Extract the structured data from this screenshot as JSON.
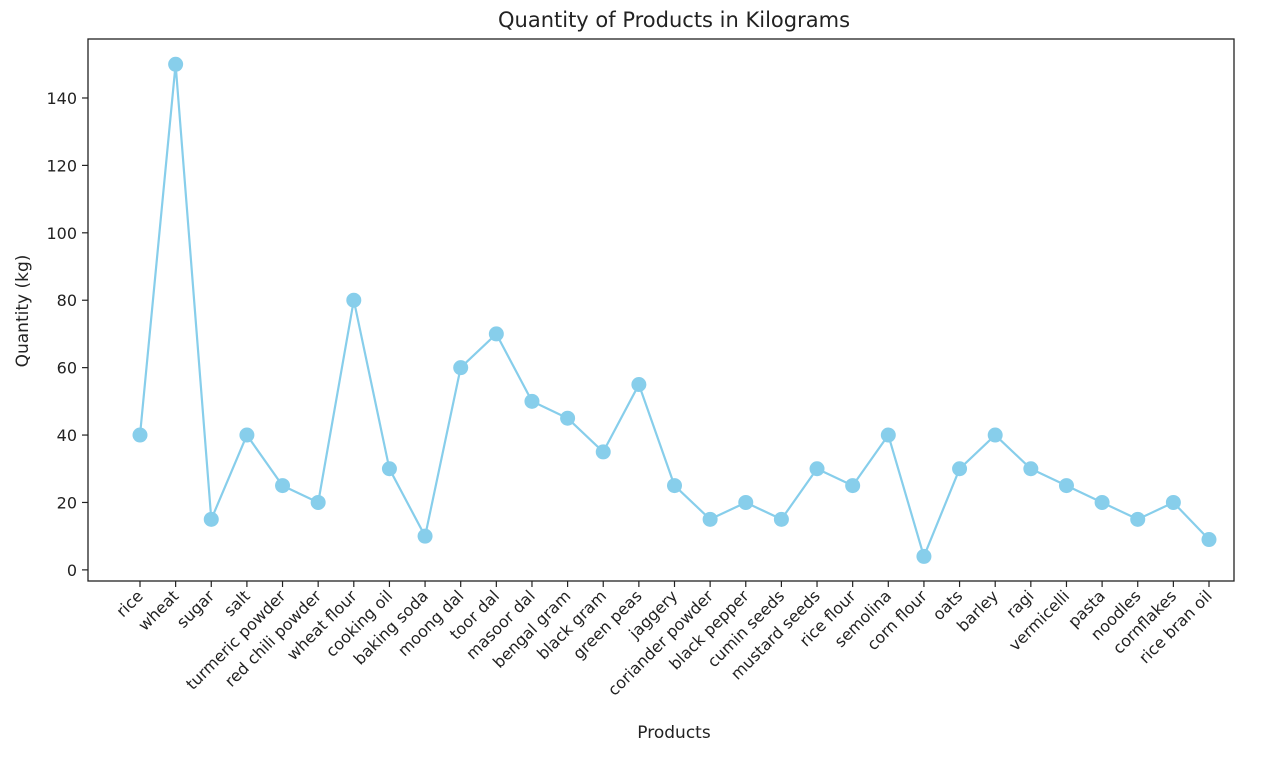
{
  "chart_data": {
    "type": "line",
    "title": "Quantity of Products in Kilograms",
    "xlabel": "Products",
    "ylabel": "Quantity (kg)",
    "ylim": [
      -3.3,
      157.5
    ],
    "yticks": [
      0,
      20,
      40,
      60,
      80,
      100,
      120,
      140
    ],
    "grid": false,
    "categories": [
      "rice",
      "wheat",
      "sugar",
      "salt",
      "turmeric powder",
      "red chili powder",
      "wheat flour",
      "cooking oil",
      "baking soda",
      "moong dal",
      "toor dal",
      "masoor dal",
      "bengal gram",
      "black gram",
      "green peas",
      "jaggery",
      "coriander powder",
      "black pepper",
      "cumin seeds",
      "mustard seeds",
      "rice flour",
      "semolina",
      "corn flour",
      "oats",
      "barley",
      "ragi",
      "vermicelli",
      "pasta",
      "noodles",
      "cornflakes",
      "rice bran oil"
    ],
    "series": [
      {
        "values": [
          40,
          150,
          15,
          40,
          25,
          20,
          80,
          30,
          10,
          60,
          70,
          50,
          45,
          35,
          55,
          25,
          15,
          20,
          15,
          30,
          25,
          40,
          4,
          30,
          40,
          30,
          25,
          20,
          15,
          20,
          9
        ],
        "color": "#87CEEB",
        "marker": "circle"
      }
    ]
  }
}
